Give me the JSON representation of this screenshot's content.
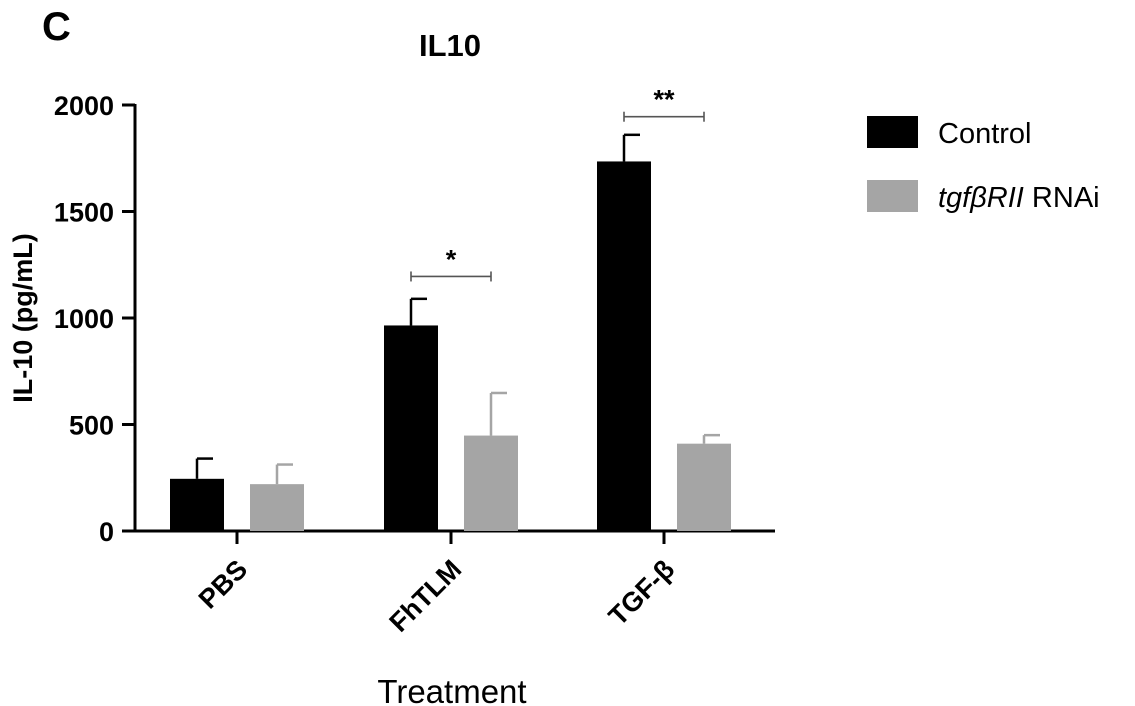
{
  "panel_label": "C",
  "chart_data": {
    "type": "bar",
    "title": "IL10",
    "xlabel": "Treatment",
    "ylabel": "IL-10 (pg/mL)",
    "categories": [
      "PBS",
      "FhTLM",
      "TGF-β"
    ],
    "ylim": [
      0,
      2000
    ],
    "yticks": [
      0,
      500,
      1000,
      1500,
      2000
    ],
    "grid": false,
    "legend_position": "right",
    "series": [
      {
        "name": "Control",
        "color": "#000000",
        "values": [
          245,
          965,
          1735
        ],
        "errors": [
          95,
          125,
          125
        ]
      },
      {
        "name_italic": "tgfβRII",
        "name_suffix": " RNAi",
        "color": "#a5a5a5",
        "values": [
          220,
          448,
          410
        ],
        "errors": [
          92,
          200,
          40
        ]
      }
    ],
    "annotations": [
      {
        "category_index": 1,
        "label": "*",
        "y": 1195
      },
      {
        "category_index": 2,
        "label": "**",
        "y": 1945
      }
    ]
  }
}
